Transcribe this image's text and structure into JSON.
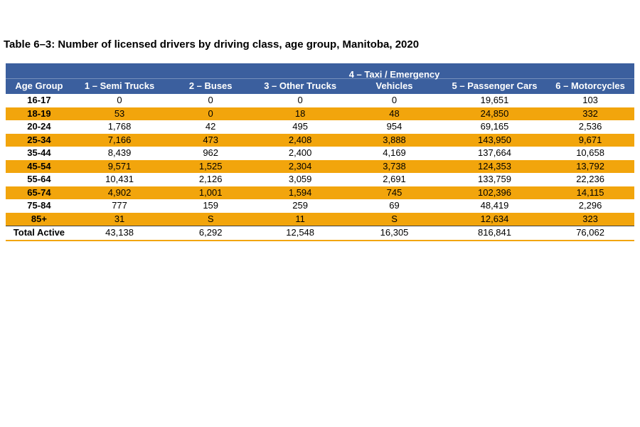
{
  "page": {
    "title": "Table 6–3: Number of licensed drivers by driving class, age group, Manitoba, 2020"
  },
  "colors": {
    "header_bg": "#3B5F9E",
    "header_text": "#FFFFFF",
    "stripe_bg": "#F2A50C",
    "body_bg": "#FFFFFF",
    "text": "#000000",
    "total_row_top_border": "#404040"
  },
  "chart_data": {
    "type": "table",
    "title": "Table 6–3: Number of licensed drivers by driving class, age group, Manitoba, 2020",
    "columns": [
      "Age Group",
      "1 – Semi Trucks",
      "2 – Buses",
      "3 – Other Trucks",
      "4 – Taxi / Emergency Vehicles",
      "5 – Passenger Cars",
      "6 – Motorcycles"
    ],
    "rows": [
      {
        "label": "16-17",
        "values": [
          "0",
          "0",
          "0",
          "0",
          "19,651",
          "103"
        ],
        "highlight": false,
        "total": false
      },
      {
        "label": "18-19",
        "values": [
          "53",
          "0",
          "18",
          "48",
          "24,850",
          "332"
        ],
        "highlight": true,
        "total": false
      },
      {
        "label": "20-24",
        "values": [
          "1,768",
          "42",
          "495",
          "954",
          "69,165",
          "2,536"
        ],
        "highlight": false,
        "total": false
      },
      {
        "label": "25-34",
        "values": [
          "7,166",
          "473",
          "2,408",
          "3,888",
          "143,950",
          "9,671"
        ],
        "highlight": true,
        "total": false
      },
      {
        "label": "35-44",
        "values": [
          "8,439",
          "962",
          "2,400",
          "4,169",
          "137,664",
          "10,658"
        ],
        "highlight": false,
        "total": false
      },
      {
        "label": "45-54",
        "values": [
          "9,571",
          "1,525",
          "2,304",
          "3,738",
          "124,353",
          "13,792"
        ],
        "highlight": true,
        "total": false
      },
      {
        "label": "55-64",
        "values": [
          "10,431",
          "2,126",
          "3,059",
          "2,691",
          "133,759",
          "22,236"
        ],
        "highlight": false,
        "total": false
      },
      {
        "label": "65-74",
        "values": [
          "4,902",
          "1,001",
          "1,594",
          "745",
          "102,396",
          "14,115"
        ],
        "highlight": true,
        "total": false
      },
      {
        "label": "75-84",
        "values": [
          "777",
          "159",
          "259",
          "69",
          "48,419",
          "2,296"
        ],
        "highlight": false,
        "total": false
      },
      {
        "label": "85+",
        "values": [
          "31",
          "S",
          "11",
          "S",
          "12,634",
          "323"
        ],
        "highlight": true,
        "total": false
      },
      {
        "label": "Total Active",
        "values": [
          "43,138",
          "6,292",
          "12,548",
          "16,305",
          "816,841",
          "76,062"
        ],
        "highlight": false,
        "total": true
      }
    ]
  }
}
